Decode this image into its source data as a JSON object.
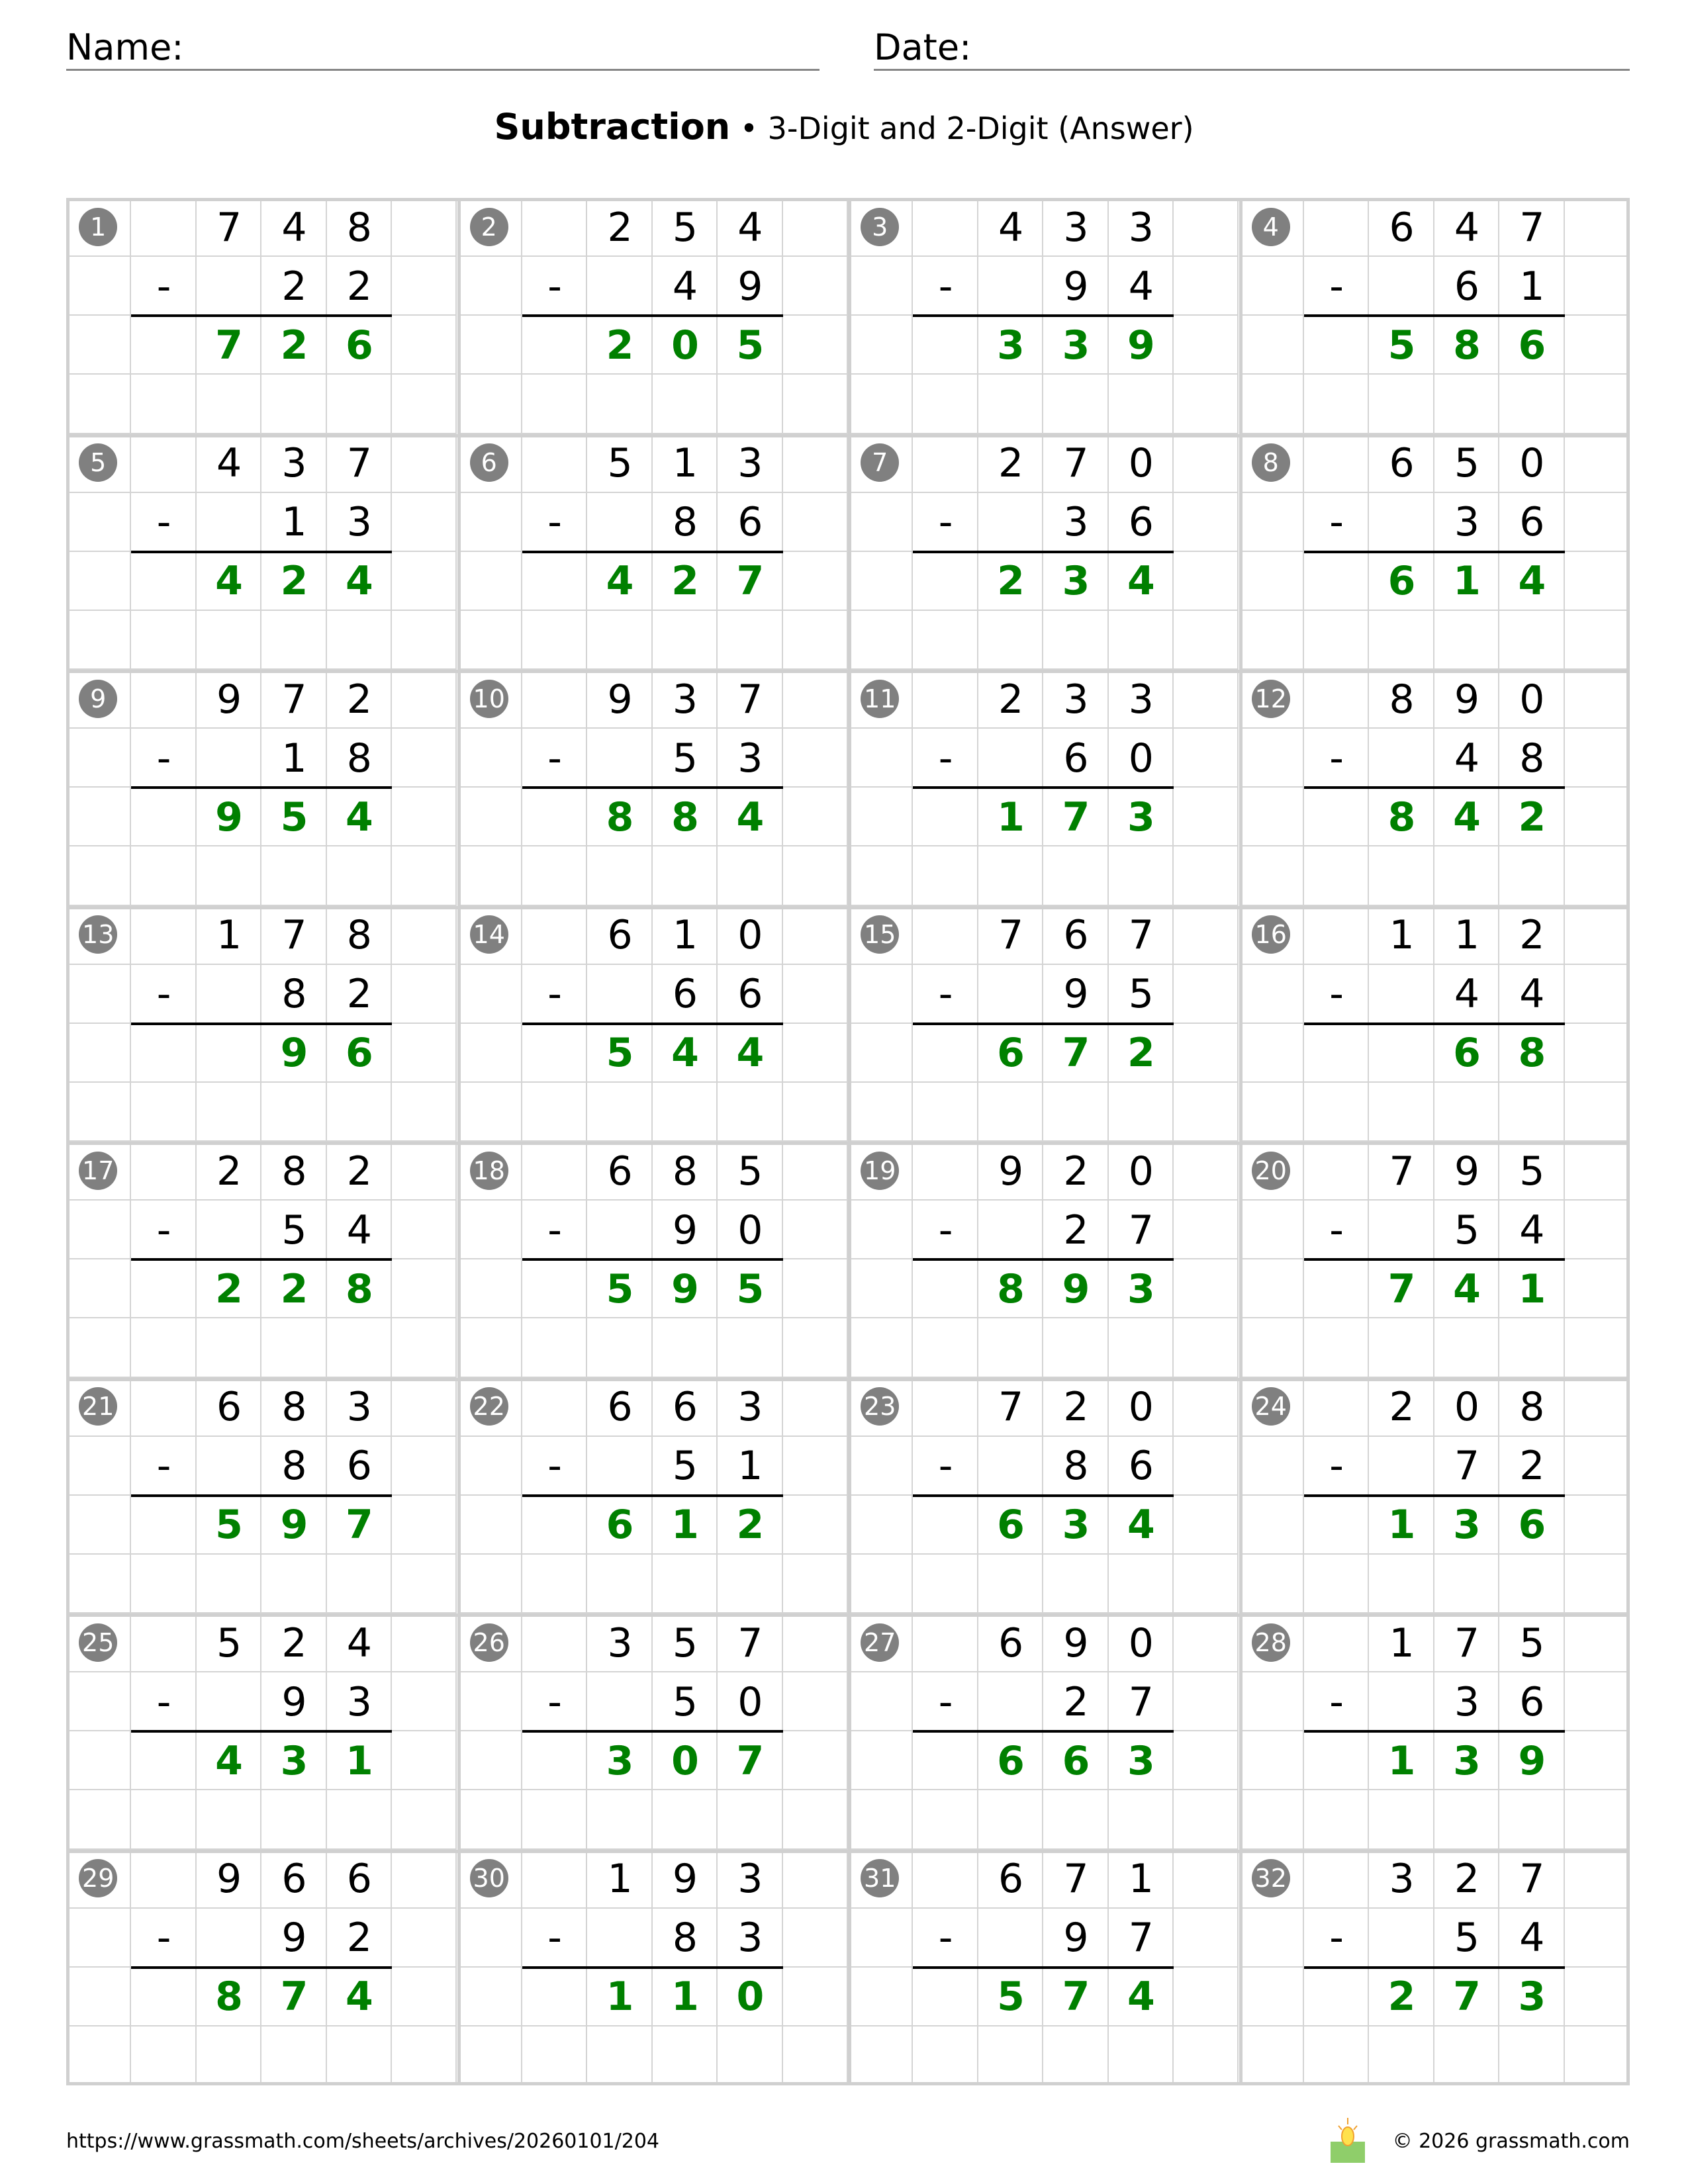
{
  "header": {
    "name_label": "Name:",
    "date_label": "Date:"
  },
  "title": {
    "main": "Subtraction",
    "separator": "•",
    "sub": "3-Digit and 2-Digit (Answer)"
  },
  "operator": "-",
  "colors": {
    "answer": "#008000",
    "badge": "#808080"
  },
  "problems": [
    {
      "n": "1",
      "top": "748",
      "bottom": "22",
      "answer": "726"
    },
    {
      "n": "2",
      "top": "254",
      "bottom": "49",
      "answer": "205"
    },
    {
      "n": "3",
      "top": "433",
      "bottom": "94",
      "answer": "339"
    },
    {
      "n": "4",
      "top": "647",
      "bottom": "61",
      "answer": "586"
    },
    {
      "n": "5",
      "top": "437",
      "bottom": "13",
      "answer": "424"
    },
    {
      "n": "6",
      "top": "513",
      "bottom": "86",
      "answer": "427"
    },
    {
      "n": "7",
      "top": "270",
      "bottom": "36",
      "answer": "234"
    },
    {
      "n": "8",
      "top": "650",
      "bottom": "36",
      "answer": "614"
    },
    {
      "n": "9",
      "top": "972",
      "bottom": "18",
      "answer": "954"
    },
    {
      "n": "10",
      "top": "937",
      "bottom": "53",
      "answer": "884"
    },
    {
      "n": "11",
      "top": "233",
      "bottom": "60",
      "answer": "173"
    },
    {
      "n": "12",
      "top": "890",
      "bottom": "48",
      "answer": "842"
    },
    {
      "n": "13",
      "top": "178",
      "bottom": "82",
      "answer": "96"
    },
    {
      "n": "14",
      "top": "610",
      "bottom": "66",
      "answer": "544"
    },
    {
      "n": "15",
      "top": "767",
      "bottom": "95",
      "answer": "672"
    },
    {
      "n": "16",
      "top": "112",
      "bottom": "44",
      "answer": "68"
    },
    {
      "n": "17",
      "top": "282",
      "bottom": "54",
      "answer": "228"
    },
    {
      "n": "18",
      "top": "685",
      "bottom": "90",
      "answer": "595"
    },
    {
      "n": "19",
      "top": "920",
      "bottom": "27",
      "answer": "893"
    },
    {
      "n": "20",
      "top": "795",
      "bottom": "54",
      "answer": "741"
    },
    {
      "n": "21",
      "top": "683",
      "bottom": "86",
      "answer": "597"
    },
    {
      "n": "22",
      "top": "663",
      "bottom": "51",
      "answer": "612"
    },
    {
      "n": "23",
      "top": "720",
      "bottom": "86",
      "answer": "634"
    },
    {
      "n": "24",
      "top": "208",
      "bottom": "72",
      "answer": "136"
    },
    {
      "n": "25",
      "top": "524",
      "bottom": "93",
      "answer": "431"
    },
    {
      "n": "26",
      "top": "357",
      "bottom": "50",
      "answer": "307"
    },
    {
      "n": "27",
      "top": "690",
      "bottom": "27",
      "answer": "663"
    },
    {
      "n": "28",
      "top": "175",
      "bottom": "36",
      "answer": "139"
    },
    {
      "n": "29",
      "top": "966",
      "bottom": "92",
      "answer": "874"
    },
    {
      "n": "30",
      "top": "193",
      "bottom": "83",
      "answer": "110"
    },
    {
      "n": "31",
      "top": "671",
      "bottom": "97",
      "answer": "574"
    },
    {
      "n": "32",
      "top": "327",
      "bottom": "54",
      "answer": "273"
    }
  ],
  "footer": {
    "url": "https://www.grassmath.com/sheets/archives/20260101/204",
    "copyright": "© 2026 grassmath.com",
    "logo_icon": "sun-grass-logo-icon"
  }
}
